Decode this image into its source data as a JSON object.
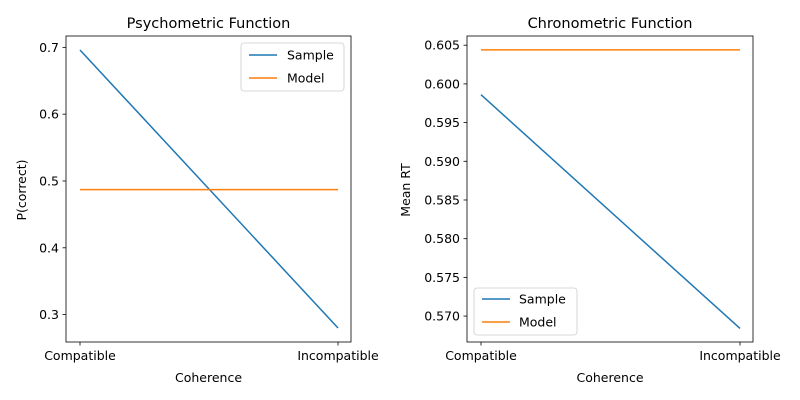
{
  "chart_data": [
    {
      "type": "line",
      "title": "Psychometric Function",
      "xlabel": "Coherence",
      "ylabel": "P(correct)",
      "categories": [
        "Compatible",
        "Incompatible"
      ],
      "series": [
        {
          "name": "Sample",
          "values": [
            0.696,
            0.28
          ],
          "color": "#1f77b4"
        },
        {
          "name": "Model",
          "values": [
            0.487,
            0.487
          ],
          "color": "#ff7f0e"
        }
      ],
      "ylim": [
        0.259,
        0.717
      ],
      "yticks": [
        0.3,
        0.4,
        0.5,
        0.6,
        0.7
      ],
      "ytick_labels": [
        "0.3",
        "0.4",
        "0.5",
        "0.6",
        "0.7"
      ],
      "legend": "top-right",
      "grid": false
    },
    {
      "type": "line",
      "title": "Chronometric Function",
      "xlabel": "Coherence",
      "ylabel": "Mean RT",
      "categories": [
        "Compatible",
        "Incompatible"
      ],
      "series": [
        {
          "name": "Sample",
          "values": [
            0.5986,
            0.5684
          ],
          "color": "#1f77b4"
        },
        {
          "name": "Model",
          "values": [
            0.6044,
            0.6044
          ],
          "color": "#ff7f0e"
        }
      ],
      "ylim": [
        0.56665,
        0.60619
      ],
      "yticks": [
        0.57,
        0.575,
        0.58,
        0.585,
        0.59,
        0.595,
        0.6,
        0.605
      ],
      "ytick_labels": [
        "0.570",
        "0.575",
        "0.580",
        "0.585",
        "0.590",
        "0.595",
        "0.600",
        "0.605"
      ],
      "legend": "bottom-left",
      "grid": false
    }
  ]
}
